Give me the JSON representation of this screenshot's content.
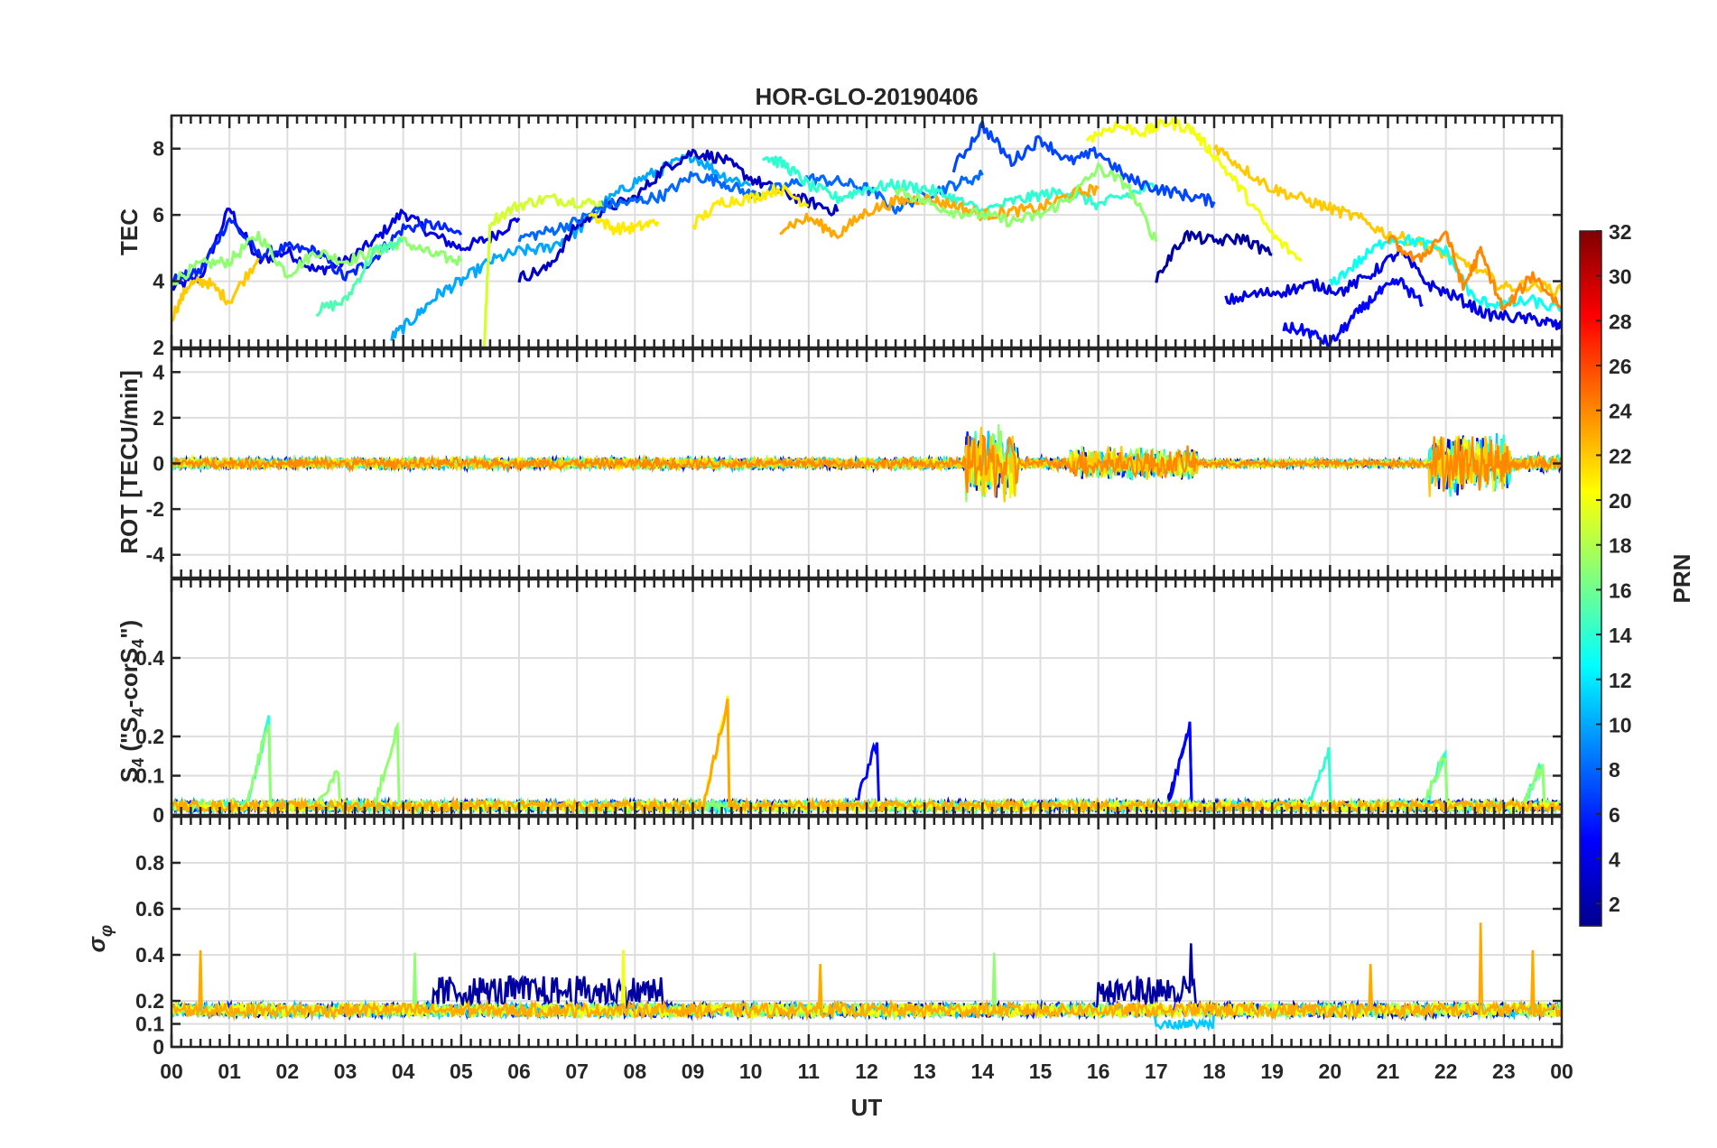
{
  "chart_data": [
    {
      "type": "line",
      "id": "tec",
      "title": "HOR-GLO-20190406",
      "ylabel": "TEC",
      "ylim": [
        2,
        9
      ],
      "yticks": [
        2,
        4,
        6,
        8
      ],
      "xlim": [
        0,
        24
      ],
      "grid": true,
      "description_series": "TEC per GLONASS PRN, colored by PRN",
      "series": [
        {
          "prn": 4,
          "x": [
            0,
            0.5,
            1,
            1.5,
            2,
            2.5,
            3,
            3.5,
            4,
            4.5,
            5,
            5.5,
            6
          ],
          "y": [
            3.8,
            4.1,
            6.2,
            4.6,
            4.9,
            4.3,
            4.6,
            5.2,
            6.1,
            5.4,
            5.0,
            5.3,
            5.9
          ]
        },
        {
          "prn": 6,
          "x": [
            0,
            0.5,
            1,
            1.5,
            2,
            2.5,
            3,
            3.5,
            4,
            4.5,
            5
          ],
          "y": [
            4.0,
            4.3,
            5.9,
            4.8,
            5.0,
            4.9,
            4.1,
            4.7,
            5.6,
            5.7,
            5.4
          ]
        },
        {
          "prn": 17,
          "x": [
            0,
            0.5,
            1,
            1.5,
            2,
            2.5,
            3,
            3.5,
            4,
            4.5,
            5
          ],
          "y": [
            4.0,
            4.5,
            4.6,
            5.4,
            4.2,
            4.9,
            4.6,
            4.9,
            5.2,
            4.8,
            4.6
          ]
        },
        {
          "prn": 22,
          "x": [
            0,
            0.3,
            0.6,
            1,
            1.5
          ],
          "y": [
            2.9,
            3.9,
            4.0,
            3.4,
            4.7
          ]
        },
        {
          "prn": 15,
          "x": [
            2.5,
            3,
            3.5,
            4
          ],
          "y": [
            3.1,
            3.4,
            4.9,
            5.2
          ]
        },
        {
          "prn": 10,
          "x": [
            3.8,
            4.2,
            4.6,
            5,
            5.5,
            6,
            6.5,
            7,
            7.5,
            8,
            8.5,
            9,
            9.5,
            10
          ],
          "y": [
            2.3,
            2.9,
            3.6,
            4.0,
            4.6,
            4.9,
            5.0,
            5.5,
            6.4,
            7.0,
            7.4,
            7.8,
            7.2,
            6.9
          ]
        },
        {
          "prn": 19,
          "x": [
            5.4,
            5.5,
            6,
            6.5,
            7,
            7.5
          ],
          "y": [
            2.1,
            5.8,
            6.3,
            6.5,
            6.4,
            6.3
          ]
        },
        {
          "prn": 3,
          "x": [
            6,
            6.5,
            7,
            7.5,
            8,
            8.5,
            9,
            9.5,
            10,
            10.5,
            11,
            11.5
          ],
          "y": [
            4.1,
            4.4,
            5.7,
            6.2,
            6.5,
            7.4,
            7.9,
            7.7,
            7.1,
            6.7,
            6.4,
            6.1
          ]
        },
        {
          "prn": 8,
          "x": [
            6,
            6.5,
            7,
            7.5,
            8,
            8.5,
            9,
            9.5,
            10,
            10.5,
            11,
            11.5,
            12,
            12.5,
            13,
            13.5,
            14
          ],
          "y": [
            5.3,
            5.5,
            5.8,
            6.3,
            6.4,
            6.6,
            7.2,
            7.0,
            6.6,
            6.8,
            7.1,
            7.0,
            6.8,
            6.2,
            6.6,
            6.9,
            7.2
          ]
        },
        {
          "prn": 21,
          "x": [
            7.2,
            7.6,
            8,
            8.4
          ],
          "y": [
            6.1,
            5.6,
            5.6,
            5.8
          ]
        },
        {
          "prn": 21,
          "x": [
            9,
            9.5,
            10,
            10.5,
            11
          ],
          "y": [
            5.7,
            6.4,
            6.5,
            6.8,
            6.3
          ]
        },
        {
          "prn": 14,
          "x": [
            10.2,
            10.6,
            11,
            11.5,
            12,
            12.5,
            13,
            13.5,
            14,
            14.5,
            15,
            15.5,
            16,
            16.5,
            17
          ],
          "y": [
            7.8,
            7.5,
            6.9,
            6.5,
            6.8,
            6.9,
            6.8,
            6.5,
            6.1,
            6.4,
            6.6,
            6.7,
            6.3,
            6.6,
            6.9
          ]
        },
        {
          "prn": 23,
          "x": [
            10.5,
            11,
            11.5,
            12,
            12.5,
            13,
            13.5,
            14,
            14.5,
            15,
            15.5,
            16
          ],
          "y": [
            5.6,
            5.9,
            5.4,
            6.1,
            6.4,
            6.5,
            6.3,
            6.0,
            6.1,
            6.2,
            6.6,
            6.8
          ]
        },
        {
          "prn": 7,
          "x": [
            13.5,
            14,
            14.5,
            15,
            15.5,
            16,
            16.5,
            17,
            17.5,
            18
          ],
          "y": [
            7.4,
            8.7,
            7.6,
            8.3,
            7.6,
            7.9,
            7.1,
            6.8,
            6.6,
            6.4
          ]
        },
        {
          "prn": 17,
          "x": [
            12.5,
            13,
            13.5,
            14,
            14.5,
            15,
            15.5,
            16,
            16.5,
            17
          ],
          "y": [
            6.8,
            6.4,
            6.1,
            6.0,
            5.8,
            6.0,
            6.5,
            7.4,
            6.9,
            5.2
          ]
        },
        {
          "prn": 20,
          "x": [
            15.8,
            16.3,
            16.8,
            17.2,
            17.6,
            18,
            18.5,
            19,
            19.5
          ],
          "y": [
            8.3,
            8.7,
            8.5,
            8.8,
            8.6,
            7.8,
            6.7,
            5.4,
            4.6
          ]
        },
        {
          "prn": 22,
          "x": [
            18,
            18.5,
            19,
            19.5,
            20,
            20.5,
            21,
            21.5,
            22,
            22.5,
            23,
            23.5,
            24
          ],
          "y": [
            8.1,
            7.4,
            6.8,
            6.5,
            6.2,
            5.9,
            5.4,
            5.2,
            4.8,
            4.4,
            3.8,
            3.9,
            3.7
          ]
        },
        {
          "prn": 2,
          "x": [
            17,
            17.5,
            18,
            18.5,
            19
          ],
          "y": [
            4.1,
            5.4,
            5.2,
            5.3,
            4.8
          ]
        },
        {
          "prn": 4,
          "x": [
            18.2,
            18.7,
            19.2,
            19.7,
            20.2,
            20.7,
            21.2,
            21.7,
            22.2,
            22.7,
            23.2,
            23.7,
            24
          ],
          "y": [
            3.4,
            3.6,
            3.7,
            3.9,
            3.7,
            4.2,
            4.9,
            3.9,
            3.5,
            3.0,
            2.9,
            2.8,
            2.6
          ]
        },
        {
          "prn": 5,
          "x": [
            19.2,
            19.6,
            20,
            20.4,
            20.8,
            21.2,
            21.6
          ],
          "y": [
            2.6,
            2.5,
            2.1,
            2.9,
            3.6,
            4.0,
            3.3
          ]
        },
        {
          "prn": 13,
          "x": [
            20,
            20.5,
            21,
            21.5,
            22,
            22.5,
            23,
            23.5,
            24
          ],
          "y": [
            3.9,
            4.6,
            5.3,
            5.2,
            4.9,
            3.4,
            3.3,
            3.4,
            3.1
          ]
        },
        {
          "prn": 24,
          "x": [
            21,
            21.5,
            22,
            22.3,
            22.6,
            23,
            23.5,
            24
          ],
          "y": [
            5.3,
            4.6,
            5.5,
            3.8,
            4.9,
            3.1,
            4.2,
            3.2
          ]
        }
      ]
    },
    {
      "type": "line",
      "id": "rot",
      "ylabel": "ROT [TECU/min]",
      "ylim": [
        -5,
        5
      ],
      "yticks": [
        -4,
        -2,
        0,
        2,
        4
      ],
      "xlim": [
        0,
        24
      ],
      "grid": true,
      "series_summary": [
        {
          "window": [
            0,
            13.7
          ],
          "amplitude": 0.3
        },
        {
          "window": [
            13.7,
            14.6
          ],
          "amplitude": 1.8
        },
        {
          "window": [
            14.6,
            15.5
          ],
          "amplitude": 0.3
        },
        {
          "window": [
            15.5,
            17.7
          ],
          "amplitude": 0.8
        },
        {
          "window": [
            17.7,
            21.7
          ],
          "amplitude": 0.2
        },
        {
          "window": [
            21.7,
            23.1
          ],
          "amplitude": 1.5
        },
        {
          "window": [
            23.1,
            24
          ],
          "amplitude": 0.4
        }
      ]
    },
    {
      "type": "line",
      "id": "s4",
      "ylabel": "S4 (\"S4-corS4\")",
      "ylabel_main": "S",
      "ylabel_sub": "4",
      "ylabel_rest_1": " (\"S",
      "ylabel_sub2": "4",
      "ylabel_rest_2": "-corS",
      "ylabel_sub3": "4",
      "ylabel_rest_3": "\")",
      "ylim": [
        0,
        0.6
      ],
      "yticks": [
        0,
        0.1,
        0.2,
        0.4
      ],
      "tick_labels": [
        "0",
        "0.1",
        "0.2",
        "0.4"
      ],
      "xlim": [
        0,
        24
      ],
      "grid": true,
      "peaks": [
        {
          "prn": 16,
          "t": 1.7,
          "value": 0.25
        },
        {
          "prn": 17,
          "t": 3.9,
          "value": 0.22
        },
        {
          "prn": 17,
          "t": 2.9,
          "value": 0.12
        },
        {
          "prn": 21,
          "t": 9.6,
          "value": 0.29
        },
        {
          "prn": 5,
          "t": 12.2,
          "value": 0.2
        },
        {
          "prn": 3,
          "t": 17.6,
          "value": 0.24
        },
        {
          "prn": 14,
          "t": 20,
          "value": 0.17
        },
        {
          "prn": 15,
          "t": 22,
          "value": 0.16
        },
        {
          "prn": 15,
          "t": 23.7,
          "value": 0.14
        }
      ]
    },
    {
      "type": "line",
      "id": "sigma-phi",
      "ylabel": "σφ",
      "ylabel_main": "σ",
      "ylabel_sub": "φ",
      "ylim": [
        0,
        1
      ],
      "yticks": [
        0,
        0.1,
        0.2,
        0.4,
        0.6,
        0.8
      ],
      "tick_labels": [
        "0",
        "0.1",
        "0.2",
        "0.4",
        "0.6",
        "0.8"
      ],
      "xlim": [
        0,
        24
      ],
      "xlabel": "UT",
      "xtick_labels": [
        "00",
        "01",
        "02",
        "03",
        "04",
        "05",
        "06",
        "07",
        "08",
        "09",
        "10",
        "11",
        "12",
        "13",
        "14",
        "15",
        "16",
        "17",
        "18",
        "19",
        "20",
        "21",
        "22",
        "23",
        "00"
      ],
      "grid": true,
      "spikes": [
        {
          "prn": 22,
          "t": 0.5,
          "value": 0.42
        },
        {
          "prn": 17,
          "t": 4.2,
          "value": 0.41
        },
        {
          "prn": 19,
          "t": 7.8,
          "value": 0.42
        },
        {
          "prn": 22,
          "t": 11.2,
          "value": 0.36
        },
        {
          "prn": 17,
          "t": 14.2,
          "value": 0.41
        },
        {
          "prn": 3,
          "t": 17.6,
          "value": 0.45
        },
        {
          "prn": 22,
          "t": 20.7,
          "value": 0.36
        },
        {
          "prn": 23,
          "t": 22.6,
          "value": 0.54
        },
        {
          "prn": 22,
          "t": 23.5,
          "value": 0.42
        }
      ]
    }
  ],
  "colorbar": {
    "label": "PRN",
    "min": 1,
    "max": 32,
    "ticks": [
      "2",
      "4",
      "6",
      "8",
      "10",
      "12",
      "14",
      "16",
      "18",
      "20",
      "22",
      "24",
      "26",
      "28",
      "30",
      "32"
    ]
  }
}
